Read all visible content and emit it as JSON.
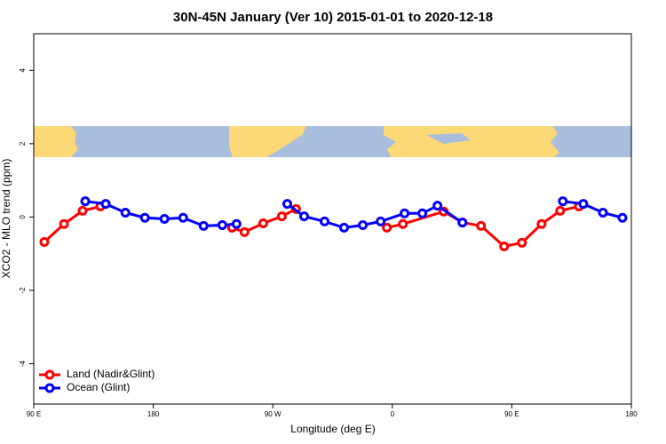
{
  "chart_data": {
    "type": "line",
    "title": "30N-45N January (Ver 10)   2015-01-01 to 2020-12-18",
    "x_label": "Longitude (deg E)",
    "y_label": "XCO2 - MLO trend (ppm)",
    "xlim": [
      90,
      540
    ],
    "ylim": [
      -5.1,
      5
    ],
    "xticks": [
      {
        "value": 90,
        "label": "90 E"
      },
      180,
      {
        "value": 270,
        "label": "90 W"
      },
      {
        "value": 360,
        "label": "0"
      },
      {
        "value": 450,
        "label": "90 E"
      },
      {
        "value": 540,
        "label": "180"
      }
    ],
    "yticks": [
      -4,
      -2,
      0,
      2,
      4
    ],
    "legend": "bottom-left",
    "series": [
      {
        "name": "Land (Nadir&Glint)",
        "color": "#ff0000",
        "x": [
          98.0,
          112.8,
          126.8,
          140.2,
          null,
          239.3,
          248.7,
          262.8,
          276.8,
          287.5,
          null,
          355.9,
          368.0,
          398.7,
          412.8,
          426.8,
          444.2,
          457.6,
          472.4,
          486.4,
          500.5
        ],
        "values": [
          -0.68,
          -0.19,
          0.17,
          0.29,
          null,
          -0.29,
          -0.41,
          -0.17,
          0.02,
          0.22,
          null,
          -0.29,
          -0.19,
          0.15,
          -0.15,
          -0.24,
          -0.8,
          -0.7,
          -0.19,
          0.17,
          0.29
        ]
      },
      {
        "name": "Ocean (Glint)",
        "color": "#0000ff",
        "x": [
          128.8,
          144.2,
          159.0,
          173.7,
          188.4,
          202.5,
          217.9,
          232.0,
          242.7,
          null,
          280.9,
          293.6,
          309.0,
          323.7,
          337.8,
          351.2,
          369.2,
          382.6,
          394.0,
          412.8,
          null,
          488.4,
          503.8,
          518.6,
          533.3
        ],
        "values": [
          0.43,
          0.36,
          0.12,
          -0.02,
          -0.05,
          -0.02,
          -0.24,
          -0.22,
          -0.19,
          null,
          0.36,
          0.02,
          -0.12,
          -0.29,
          -0.22,
          -0.12,
          0.1,
          0.1,
          0.31,
          -0.15,
          null,
          0.43,
          0.36,
          0.12,
          -0.02
        ]
      }
    ]
  }
}
